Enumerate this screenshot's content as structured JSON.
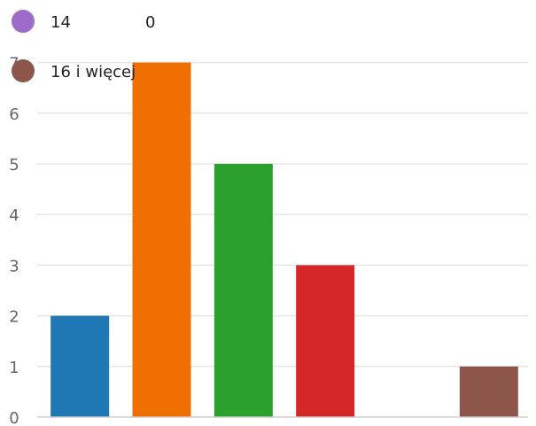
{
  "chart_data": {
    "type": "bar",
    "categories": [
      "",
      "",
      "",
      "",
      "",
      ""
    ],
    "values": [
      2,
      7,
      5,
      3,
      0,
      1
    ],
    "colors": [
      "#1f77b4",
      "#ef6f00",
      "#2ca02c",
      "#d62728",
      "#9467bd",
      "#8c564b"
    ],
    "ylim": [
      0,
      7
    ],
    "yticks": [
      "0",
      "1",
      "2",
      "3",
      "4",
      "5",
      "6",
      "7"
    ],
    "grid": true,
    "legend": {
      "placement": "top-left",
      "entries": [
        {
          "name": "14",
          "value": "0",
          "color": "#9c6cc8"
        },
        {
          "name": "16 i więcej",
          "value": "",
          "color": "#8c564b"
        }
      ]
    }
  }
}
